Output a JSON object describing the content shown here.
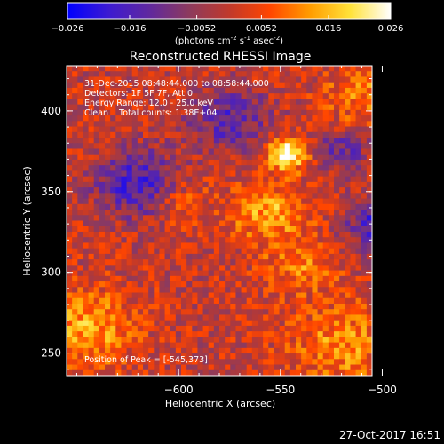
{
  "chart_data": {
    "type": "heatmap",
    "title": "Reconstructed RHESSI Image",
    "xlabel": "Heliocentric X (arcsec)",
    "ylabel": "Heliocentric Y (arcsec)",
    "xlim": [
      -655,
      -505
    ],
    "ylim": [
      236,
      428
    ],
    "x_ticks": [
      -600,
      -550,
      -500
    ],
    "y_ticks": [
      250,
      300,
      350,
      400
    ],
    "x_tick_labels": [
      "−600",
      "−550",
      "−500"
    ],
    "y_tick_labels": [
      "250",
      "300",
      "350",
      "400"
    ],
    "colorbar": {
      "range": [
        -0.026,
        0.026
      ],
      "ticks": [
        -0.026,
        -0.016,
        -0.0052,
        0.0052,
        0.016,
        0.026
      ],
      "tick_labels": [
        "−0.026",
        "−0.016",
        "−0.0052",
        "0.0052",
        "0.016",
        "0.026"
      ],
      "unit_main": "(photons cm",
      "unit_sup1": "-2",
      "unit_mid1": " s",
      "unit_sup2": "-1",
      "unit_mid2": " asec",
      "unit_sup3": "-2",
      "unit_end": ")",
      "colors": [
        "#0000ff",
        "#3c1ad2",
        "#5f28a0",
        "#8c3a5e",
        "#c0392b",
        "#ff4500",
        "#ff9c00",
        "#ffe23a",
        "#ffffff"
      ]
    },
    "annotations": {
      "line1": "31-Dec-2015 08:48:44.000 to 08:58:44.000",
      "line2": "Detectors: 1F 5F 7F, Att 0",
      "line3": "Energy Range: 12.0 - 25.0 keV",
      "line4": "Clean    Total counts: 1.38E+04",
      "peak": "Position of Peak = [-545,373]"
    },
    "peak": [
      -545,
      373
    ],
    "sources": [
      {
        "x": -547,
        "y": 373,
        "sigma": 7,
        "amp": 1.0
      },
      {
        "x": -555,
        "y": 337,
        "sigma": 13,
        "amp": 0.55
      },
      {
        "x": -540,
        "y": 305,
        "sigma": 12,
        "amp": 0.38
      },
      {
        "x": -645,
        "y": 265,
        "sigma": 16,
        "amp": 0.55
      },
      {
        "x": -520,
        "y": 255,
        "sigma": 18,
        "amp": 0.45
      },
      {
        "x": -510,
        "y": 410,
        "sigma": 13,
        "amp": 0.4
      },
      {
        "x": -600,
        "y": 345,
        "sigma": 11,
        "amp": 0.28
      }
    ],
    "negative_regions": [
      {
        "x": -620,
        "y": 355,
        "sigma": 14,
        "amp": -0.7
      },
      {
        "x": -500,
        "y": 330,
        "sigma": 12,
        "amp": -0.7
      },
      {
        "x": -575,
        "y": 395,
        "sigma": 13,
        "amp": -0.55
      },
      {
        "x": -520,
        "y": 375,
        "sigma": 9,
        "amp": -0.45
      }
    ]
  },
  "timestamp": "27-Oct-2017 16:51"
}
